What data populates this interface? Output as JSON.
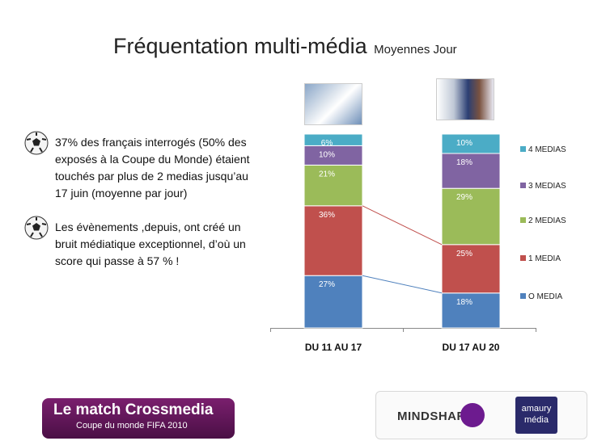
{
  "slide": {
    "title_main": "Fréquentation multi-média",
    "title_sub": "Moyennes Jour",
    "bullets": [
      "37% des français interrogés (50% des exposés à la Coupe du Monde) étaient touchés par plus de 2 medias jusqu’au 17 juin (moyenne par jour)",
      "Les évènements ,depuis, ont créé un bruit médiatique exceptionnel, d’où un score qui passe à 57 %  !"
    ],
    "badge_title": "Le match Crossmedia",
    "badge_subtitle": "Coupe du monde FIFA 2010",
    "logo_mindshare": "MINDSHARE",
    "logo_amaury_1": "amaury",
    "logo_amaury_2": "média"
  },
  "chart_data": {
    "type": "bar",
    "stacked": true,
    "categories": [
      "DU 11 AU 17",
      "DU 17 AU 20"
    ],
    "ylim": [
      0,
      100
    ],
    "series": [
      {
        "name": "O MEDIA",
        "values": [
          27,
          18
        ],
        "color": "#4f81bd",
        "labels": [
          "27%",
          "18%"
        ]
      },
      {
        "name": "1 MEDIA",
        "values": [
          36,
          25
        ],
        "color": "#c0504d",
        "labels": [
          "36%",
          "25%"
        ]
      },
      {
        "name": "2 MEDIAS",
        "values": [
          21,
          29
        ],
        "color": "#9bbb59",
        "labels": [
          "21%",
          "29%"
        ]
      },
      {
        "name": "3 MEDIAS",
        "values": [
          10,
          18
        ],
        "color": "#8064a2",
        "labels": [
          "10%",
          "18%"
        ]
      },
      {
        "name": "4 MEDIAS",
        "values": [
          6,
          10
        ],
        "color": "#4bacc6",
        "labels": [
          "6%",
          "10%"
        ]
      }
    ],
    "legend_order": [
      "4 MEDIAS",
      "3 MEDIAS",
      "2 MEDIAS",
      "1 MEDIA",
      "O MEDIA"
    ],
    "legend_placement": "right",
    "connector_lines": true,
    "grid": false
  }
}
